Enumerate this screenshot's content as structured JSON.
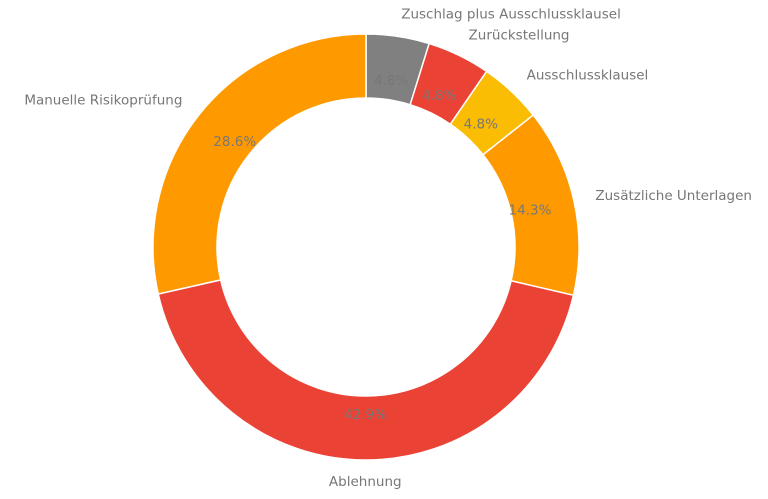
{
  "chart_data": {
    "type": "pie",
    "variant": "donut",
    "start_angle_deg": 90,
    "direction": "clockwise",
    "slices": [
      {
        "label": "Zuschlag plus Ausschlussklausel",
        "value": 4.8,
        "pct_label": "4.8%",
        "color": "#808080"
      },
      {
        "label": "Zurückstellung",
        "value": 4.8,
        "pct_label": "4.8%",
        "color": "#EA4335"
      },
      {
        "label": "Ausschlussklausel",
        "value": 4.8,
        "pct_label": "4.8%",
        "color": "#FBBC04"
      },
      {
        "label": "Zusätzliche Unterlagen",
        "value": 14.3,
        "pct_label": "14.3%",
        "color": "#FF9900"
      },
      {
        "label": "Ablehnung",
        "value": 42.9,
        "pct_label": "42.9%",
        "color": "#EA4335"
      },
      {
        "label": "Manuelle Risikoprüfung",
        "value": 28.6,
        "pct_label": "28.6%",
        "color": "#FF9900"
      }
    ],
    "legend": "none"
  }
}
